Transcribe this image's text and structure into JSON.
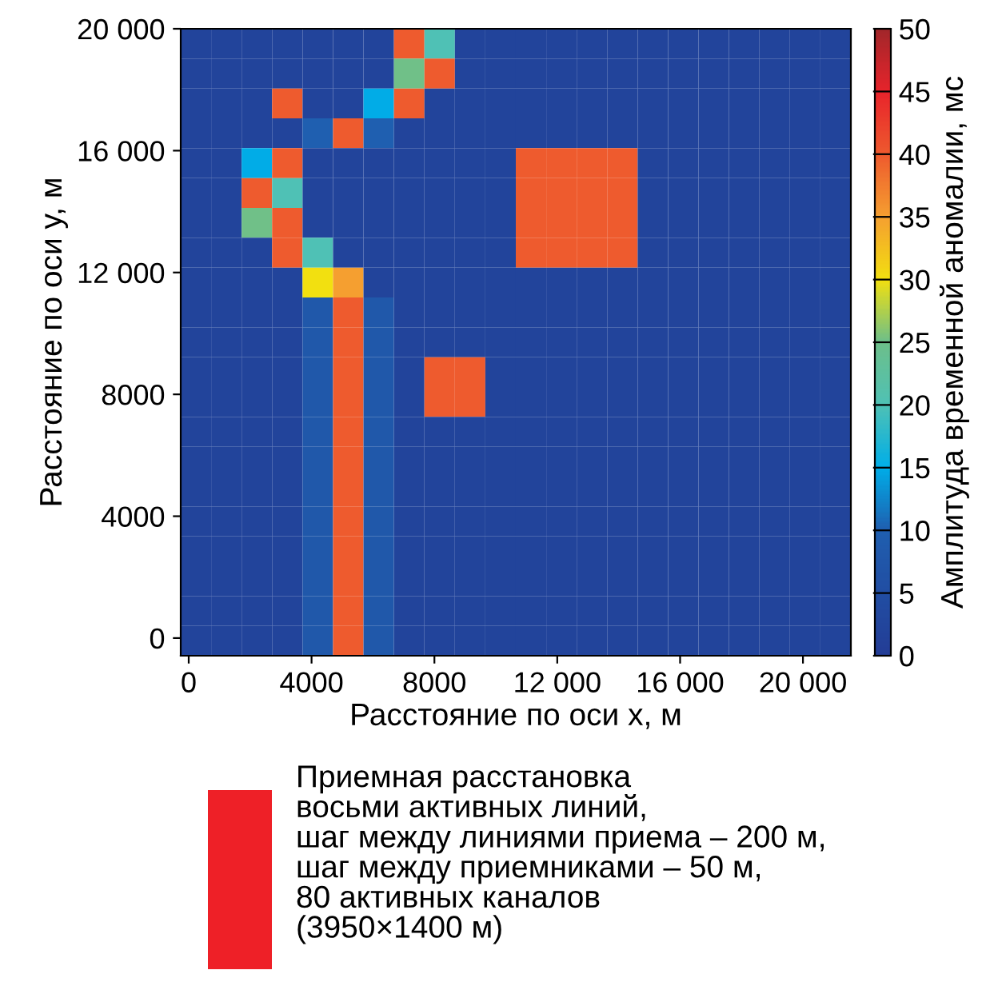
{
  "chart_data": {
    "type": "heatmap",
    "xlabel": "Расстояние по оси x, м",
    "ylabel": "Расстояние по оси y, м",
    "clabel": "Амплитуда временной аномалии, мс",
    "xlim": [
      -260,
      21560
    ],
    "ylim": [
      -580,
      20000
    ],
    "xticks": [
      0,
      4000,
      8000,
      {
        "value": 12000,
        "label": "12 000"
      },
      {
        "value": 16000,
        "label": "16 000"
      },
      {
        "value": 20000,
        "label": "20 000"
      }
    ],
    "yticks": [
      0,
      4000,
      8000,
      {
        "value": 12000,
        "label": "12 000"
      },
      {
        "value": 16000,
        "label": "16 000"
      },
      {
        "value": 20000,
        "label": "20 000"
      }
    ],
    "clim": [
      0,
      50
    ],
    "cticks": [
      0,
      5,
      10,
      15,
      20,
      25,
      30,
      35,
      40,
      45,
      50
    ],
    "cells": [
      [
        2,
        2,
        2,
        2,
        2,
        2,
        2,
        40,
        20,
        2,
        2,
        2,
        2,
        2,
        2,
        2,
        2,
        2,
        2,
        2,
        2,
        2
      ],
      [
        2,
        2,
        2,
        2,
        2,
        2,
        2,
        25,
        40,
        2,
        2,
        2,
        2,
        2,
        2,
        2,
        2,
        2,
        2,
        2,
        2,
        2
      ],
      [
        2,
        2,
        2,
        40,
        2,
        2,
        15,
        40,
        2,
        2,
        2,
        2,
        2,
        2,
        2,
        2,
        2,
        2,
        2,
        2,
        2,
        2
      ],
      [
        2,
        2,
        2,
        2,
        10,
        40,
        10,
        2,
        2,
        2,
        2,
        2,
        2,
        2,
        2,
        2,
        2,
        2,
        2,
        2,
        2,
        2
      ],
      [
        2,
        2,
        15,
        40,
        2,
        2,
        2,
        2,
        2,
        2,
        2,
        40,
        40,
        40,
        40,
        2,
        2,
        2,
        2,
        2,
        2,
        2
      ],
      [
        2,
        2,
        40,
        20,
        2,
        2,
        2,
        2,
        2,
        2,
        2,
        40,
        40,
        40,
        40,
        2,
        2,
        2,
        2,
        2,
        2,
        2
      ],
      [
        2,
        2,
        25,
        40,
        2,
        2,
        2,
        2,
        2,
        2,
        2,
        40,
        40,
        40,
        40,
        2,
        2,
        2,
        2,
        2,
        2,
        2
      ],
      [
        2,
        2,
        2,
        40,
        20,
        2,
        2,
        2,
        2,
        2,
        2,
        40,
        40,
        40,
        40,
        2,
        2,
        2,
        2,
        2,
        2,
        2
      ],
      [
        2,
        2,
        2,
        2,
        30,
        35,
        2,
        2,
        2,
        2,
        2,
        2,
        2,
        2,
        2,
        2,
        2,
        2,
        2,
        2,
        2,
        2
      ],
      [
        2,
        2,
        2,
        2,
        8,
        40,
        8,
        2,
        2,
        2,
        2,
        2,
        2,
        2,
        2,
        2,
        2,
        2,
        2,
        2,
        2,
        2
      ],
      [
        2,
        2,
        2,
        2,
        8,
        40,
        8,
        2,
        2,
        2,
        2,
        2,
        2,
        2,
        2,
        2,
        2,
        2,
        2,
        2,
        2,
        2
      ],
      [
        2,
        2,
        2,
        2,
        8,
        40,
        8,
        2,
        40,
        40,
        2,
        2,
        2,
        2,
        2,
        2,
        2,
        2,
        2,
        2,
        2,
        2
      ],
      [
        2,
        2,
        2,
        2,
        8,
        40,
        8,
        2,
        40,
        40,
        2,
        2,
        2,
        2,
        2,
        2,
        2,
        2,
        2,
        2,
        2,
        2
      ],
      [
        2,
        2,
        2,
        2,
        8,
        40,
        8,
        2,
        2,
        2,
        2,
        2,
        2,
        2,
        2,
        2,
        2,
        2,
        2,
        2,
        2,
        2
      ],
      [
        2,
        2,
        2,
        2,
        8,
        40,
        8,
        2,
        2,
        2,
        2,
        2,
        2,
        2,
        2,
        2,
        2,
        2,
        2,
        2,
        2,
        2
      ],
      [
        2,
        2,
        2,
        2,
        8,
        40,
        8,
        2,
        2,
        2,
        2,
        2,
        2,
        2,
        2,
        2,
        2,
        2,
        2,
        2,
        2,
        2
      ],
      [
        2,
        2,
        2,
        2,
        8,
        40,
        8,
        2,
        2,
        2,
        2,
        2,
        2,
        2,
        2,
        2,
        2,
        2,
        2,
        2,
        2,
        2
      ],
      [
        2,
        2,
        2,
        2,
        8,
        40,
        8,
        2,
        2,
        2,
        2,
        2,
        2,
        2,
        2,
        2,
        2,
        2,
        2,
        2,
        2,
        2
      ],
      [
        2,
        2,
        2,
        2,
        8,
        40,
        8,
        2,
        2,
        2,
        2,
        2,
        2,
        2,
        2,
        2,
        2,
        2,
        2,
        2,
        2,
        2
      ],
      [
        2,
        2,
        2,
        2,
        8,
        40,
        8,
        2,
        2,
        2,
        2,
        2,
        2,
        2,
        2,
        2,
        2,
        2,
        2,
        2,
        2,
        2
      ],
      [
        2,
        2,
        2,
        2,
        8,
        40,
        8,
        2,
        2,
        2,
        2,
        2,
        2,
        2,
        2,
        2,
        2,
        2,
        2,
        2,
        2,
        2
      ]
    ],
    "annotations": [
      "Приемная расстановка\nвосьми активных линий,\nшаг между линиями приема – 200 м,\nшаг между приемниками – 50 м,\n80 активных каналов\n(3950×1400 м)"
    ]
  }
}
